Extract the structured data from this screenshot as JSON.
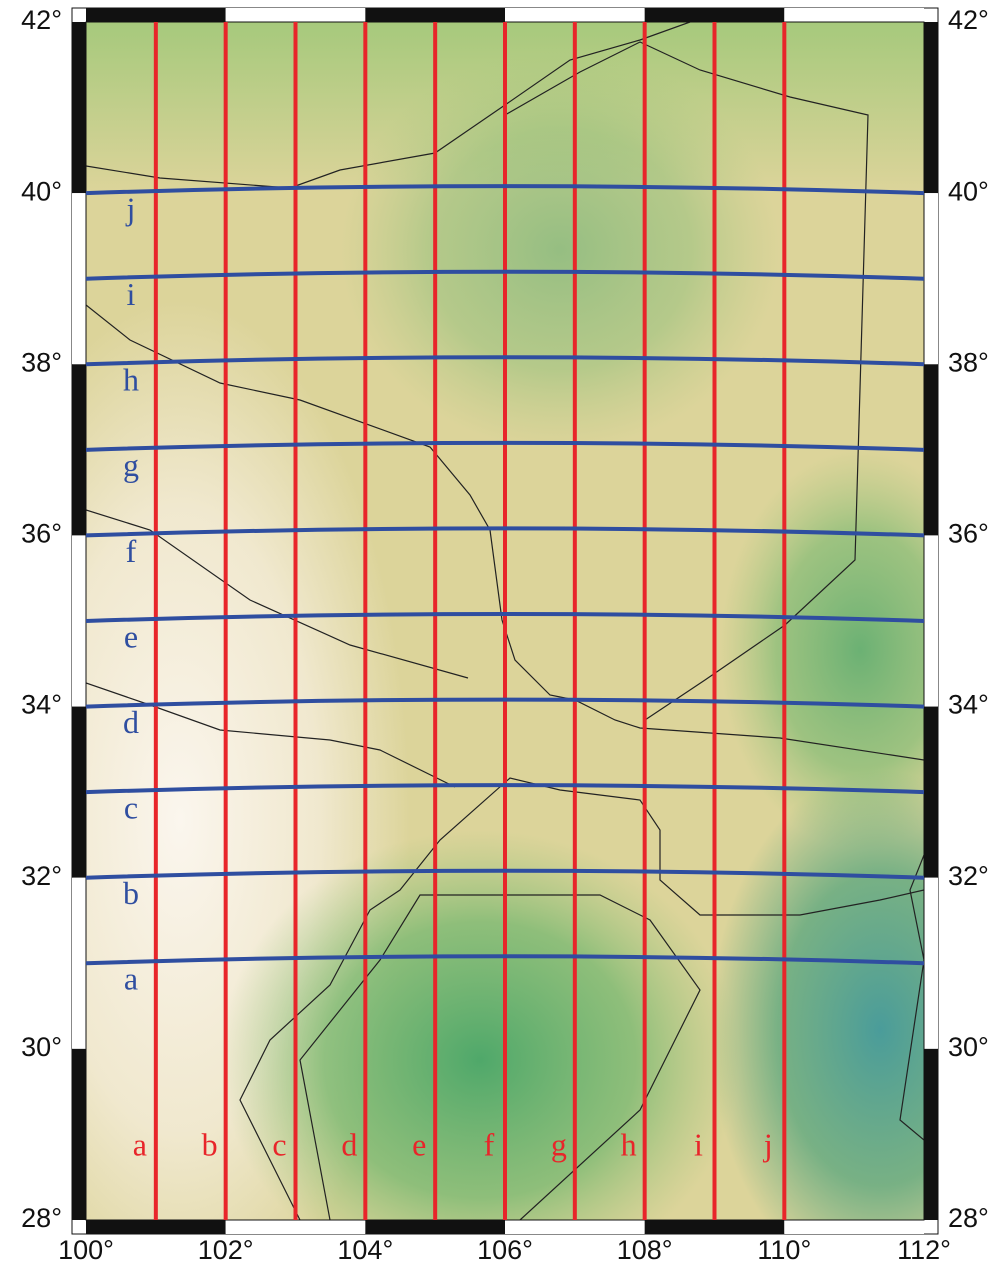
{
  "map": {
    "lon_ticks": [
      {
        "value": 100,
        "label": "100°"
      },
      {
        "value": 102,
        "label": "102°"
      },
      {
        "value": 104,
        "label": "104°"
      },
      {
        "value": 106,
        "label": "106°"
      },
      {
        "value": 108,
        "label": "108°"
      },
      {
        "value": 110,
        "label": "110°"
      },
      {
        "value": 112,
        "label": "112°"
      }
    ],
    "lat_ticks": [
      {
        "value": 42,
        "label": "42°"
      },
      {
        "value": 40,
        "label": "40°"
      },
      {
        "value": 38,
        "label": "38°"
      },
      {
        "value": 36,
        "label": "36°"
      },
      {
        "value": 34,
        "label": "34°"
      },
      {
        "value": 32,
        "label": "32°"
      },
      {
        "value": 30,
        "label": "30°"
      },
      {
        "value": 28,
        "label": "28°"
      }
    ],
    "meridians": {
      "color": "#e8252a",
      "values": [
        101,
        102,
        103,
        104,
        105,
        106,
        107,
        108,
        109,
        110
      ],
      "labels": [
        "a",
        "b",
        "c",
        "d",
        "e",
        "f",
        "g",
        "h",
        "i",
        "j"
      ]
    },
    "parallels": {
      "color": "#2f4ea0",
      "values": [
        31,
        32,
        33,
        34,
        35,
        36,
        37,
        38,
        39,
        40
      ],
      "labels": [
        "a",
        "b",
        "c",
        "d",
        "e",
        "f",
        "g",
        "h",
        "i",
        "j"
      ]
    }
  }
}
